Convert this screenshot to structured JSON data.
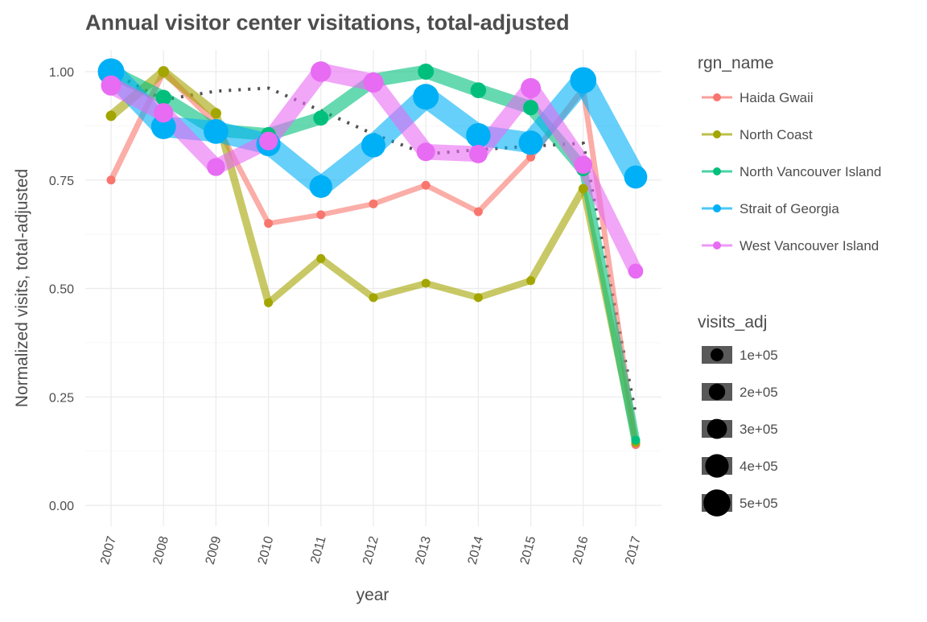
{
  "chart_data": {
    "type": "line",
    "title": "Annual visitor center visitations, total-adjusted",
    "xlabel": "year",
    "ylabel": "Normalized visits, total-adjusted",
    "ylim": [
      0,
      1.05
    ],
    "y_ticks": [
      0.0,
      0.25,
      0.5,
      0.75,
      1.0
    ],
    "y_tick_labels": [
      "0.00",
      "0.25",
      "0.50",
      "0.75",
      "1.00"
    ],
    "categories": [
      "2007",
      "2008",
      "2009",
      "2010",
      "2011",
      "2012",
      "2013",
      "2014",
      "2015",
      "2016",
      "2017"
    ],
    "grid": true,
    "legend_position": "right",
    "color_legend_title": "rgn_name",
    "size_legend_title": "visits_adj",
    "size_legend": [
      {
        "label": "1e+05",
        "value": 100000
      },
      {
        "label": "2e+05",
        "value": 200000
      },
      {
        "label": "3e+05",
        "value": 300000
      },
      {
        "label": "4e+05",
        "value": 400000
      },
      {
        "label": "5e+05",
        "value": 500000
      }
    ],
    "series": [
      {
        "name": "Haida Gwaii",
        "color": "#F8766D",
        "values": [
          0.75,
          1.0,
          0.88,
          0.65,
          0.67,
          0.695,
          0.738,
          0.677,
          0.803,
          0.96,
          0.14
        ],
        "visits_adj": [
          30000,
          40000,
          35000,
          26000,
          27000,
          28000,
          30000,
          27000,
          32000,
          38000,
          6000
        ]
      },
      {
        "name": "North Coast",
        "color": "#A3A500",
        "values": [
          0.898,
          1.0,
          0.904,
          0.467,
          0.569,
          0.479,
          0.512,
          0.479,
          0.518,
          0.73,
          0.145
        ],
        "visits_adj": [
          80000,
          90000,
          82000,
          42000,
          52000,
          43000,
          46000,
          43000,
          47000,
          66000,
          13000
        ]
      },
      {
        "name": "North Vancouver Island",
        "color": "#00BF7D",
        "values": [
          1.0,
          0.94,
          0.865,
          0.855,
          0.893,
          0.98,
          1.0,
          0.957,
          0.917,
          0.775,
          0.15
        ],
        "visits_adj": [
          190000,
          180000,
          165000,
          163000,
          170000,
          187000,
          190000,
          182000,
          175000,
          148000,
          29000
        ]
      },
      {
        "name": "Strait of Georgia",
        "color": "#00B0F6",
        "values": [
          1.0,
          0.873,
          0.862,
          0.833,
          0.735,
          0.83,
          0.942,
          0.853,
          0.836,
          0.98,
          0.757
        ],
        "visits_adj": [
          520000,
          455000,
          450000,
          434000,
          383000,
          432000,
          490000,
          444000,
          435000,
          510000,
          394000
        ]
      },
      {
        "name": "West Vancouver Island",
        "color": "#E76BF3",
        "values": [
          0.968,
          0.905,
          0.78,
          0.84,
          1.0,
          0.975,
          0.815,
          0.81,
          0.962,
          0.785,
          0.54
        ],
        "visits_adj": [
          300000,
          280000,
          240000,
          260000,
          310000,
          302000,
          252000,
          250000,
          298000,
          243000,
          167000
        ]
      }
    ],
    "total_trend": {
      "values": [
        1.0,
        0.935,
        0.955,
        0.962,
        0.91,
        0.856,
        0.81,
        0.82,
        0.828,
        0.835,
        0.21
      ]
    }
  }
}
